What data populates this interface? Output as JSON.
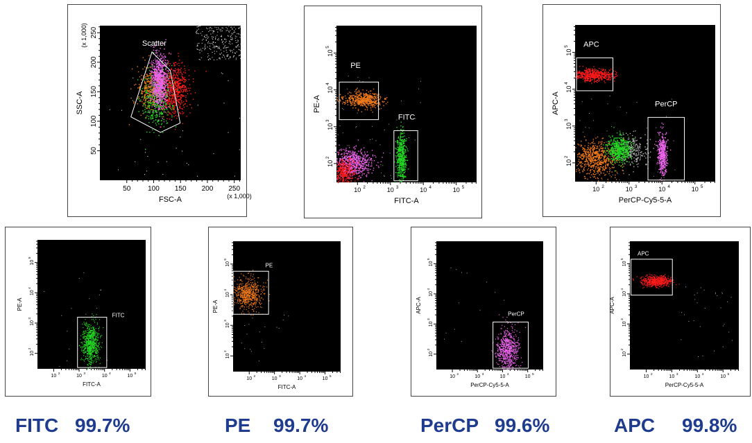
{
  "colors": {
    "fitc": "#22dd22",
    "pe": "#f07a1a",
    "percp": "#ee66ee",
    "apc": "#ff1a1a",
    "grey": "#aaaaaa",
    "stat_text": "#1f3c8f"
  },
  "chart_data": [
    {
      "id": "scatter",
      "type": "scatter",
      "xlabel": "FSC-A",
      "ylabel": "SSC-A",
      "x_scale_note": "(x 1,000)",
      "y_scale_note": "(x 1,000)",
      "xlim": [
        0,
        262
      ],
      "ylim": [
        0,
        262
      ],
      "x_ticks": [
        "50",
        "100",
        "150",
        "200",
        "250"
      ],
      "y_ticks": [
        "50",
        "100",
        "150",
        "200",
        "250"
      ],
      "gate": {
        "label": "Scatter"
      }
    },
    {
      "id": "fitc_pe",
      "type": "scatter",
      "scale": "log",
      "xlabel": "FITC-A",
      "ylabel": "PE-A",
      "x_ticks": [
        "10",
        "10",
        "10",
        "10"
      ],
      "x_exps": [
        "2",
        "3",
        "4",
        "5"
      ],
      "y_ticks": [
        "10",
        "10",
        "10",
        "10"
      ],
      "y_exps": [
        "2",
        "3",
        "4",
        "5"
      ],
      "gates": [
        {
          "label": "PE"
        },
        {
          "label": "FITC"
        }
      ]
    },
    {
      "id": "percp_apc",
      "type": "scatter",
      "scale": "log",
      "xlabel": "PerCP-Cy5-5-A",
      "ylabel": "APC-A",
      "x_ticks": [
        "10",
        "10",
        "10",
        "10"
      ],
      "x_exps": [
        "2",
        "3",
        "4",
        "5"
      ],
      "y_ticks": [
        "10",
        "10",
        "10",
        "10"
      ],
      "y_exps": [
        "2",
        "3",
        "4",
        "5"
      ],
      "gates": [
        {
          "label": "APC"
        },
        {
          "label": "PerCP"
        }
      ]
    },
    {
      "id": "fitc_single",
      "type": "scatter",
      "scale": "log",
      "xlabel": "FITC-A",
      "ylabel": "PE-A",
      "x_ticks": [
        "10",
        "10",
        "10",
        "10"
      ],
      "x_exps": [
        "2",
        "3",
        "4",
        "5"
      ],
      "y_ticks": [
        "10",
        "10",
        "10",
        "10"
      ],
      "y_exps": [
        "2",
        "3",
        "4",
        "5"
      ],
      "gates": [
        {
          "label": "FITC"
        }
      ]
    },
    {
      "id": "pe_single",
      "type": "scatter",
      "scale": "log",
      "xlabel": "FITC-A",
      "ylabel": "PE-A",
      "x_ticks": [
        "10",
        "10",
        "10",
        "10"
      ],
      "x_exps": [
        "2",
        "3",
        "4",
        "5"
      ],
      "y_ticks": [
        "10",
        "10",
        "10",
        "10"
      ],
      "y_exps": [
        "2",
        "3",
        "4",
        "5"
      ],
      "gates": [
        {
          "label": "PE"
        }
      ]
    },
    {
      "id": "percp_single",
      "type": "scatter",
      "scale": "log",
      "xlabel": "PerCP-Cy5-5-A",
      "ylabel": "APC-A",
      "x_ticks": [
        "10",
        "10",
        "10",
        "10"
      ],
      "x_exps": [
        "2",
        "3",
        "4",
        "5"
      ],
      "y_ticks": [
        "10",
        "10",
        "10",
        "10"
      ],
      "y_exps": [
        "2",
        "3",
        "4",
        "5"
      ],
      "gates": [
        {
          "label": "PerCP"
        }
      ]
    },
    {
      "id": "apc_single",
      "type": "scatter",
      "scale": "log",
      "xlabel": "PerCP-Cy5-5-A",
      "ylabel": "APC-A",
      "x_ticks": [
        "10",
        "10",
        "10",
        "10"
      ],
      "x_exps": [
        "2",
        "3",
        "4",
        "5"
      ],
      "y_ticks": [
        "10",
        "10",
        "10",
        "10"
      ],
      "y_exps": [
        "2",
        "3",
        "4",
        "5"
      ],
      "gates": [
        {
          "label": "APC"
        }
      ]
    }
  ],
  "stats": [
    {
      "label": "FITC",
      "value": "99.7%"
    },
    {
      "label": "PE",
      "value": "99.7%"
    },
    {
      "label": "PerCP",
      "value": "99.6%"
    },
    {
      "label": "APC",
      "value": "99.8%"
    }
  ]
}
